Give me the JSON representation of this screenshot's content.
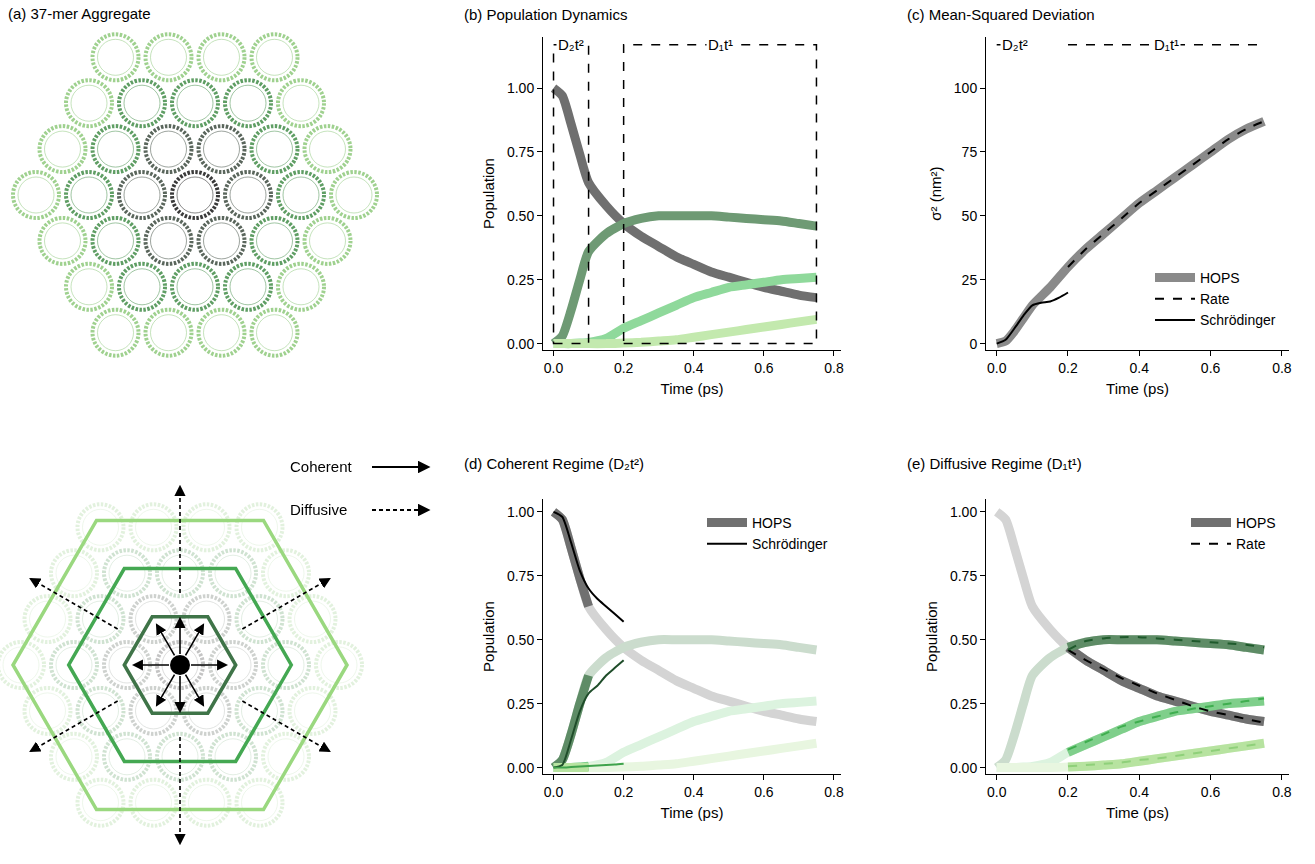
{
  "diagram": {
    "title": "(a) 37-mer Aggregate",
    "arrow_legend": [
      {
        "label": "Coherent",
        "line_style": "solid"
      },
      {
        "label": "Diffusive",
        "line_style": "dashed"
      }
    ]
  },
  "chart_data": [
    {
      "type": "line",
      "title": "(b) Population Dynamics",
      "x_label": "Time (ps)",
      "y_label": "Population",
      "xlim": [
        -0.03,
        0.82
      ],
      "xticks": [
        {
          "value": 0,
          "label": "0.0"
        },
        0.2,
        0.4,
        0.6,
        0.8
      ],
      "ylim": [
        -0.025,
        1.2
      ],
      "yticks": [
        {
          "value": 0,
          "label": "0.00"
        },
        0.25,
        {
          "value": 0.5,
          "label": "0.50"
        },
        0.75,
        {
          "value": 1,
          "label": "1.00"
        }
      ],
      "grid": false,
      "regions": [
        {
          "label": "D₂t²",
          "x": [
            0,
            0.1
          ],
          "y": [
            0,
            1.17
          ]
        },
        {
          "label": "D₁t¹",
          "x": [
            0.2,
            0.75
          ],
          "y": [
            0,
            1.17
          ]
        }
      ],
      "x": [
        0,
        0.025,
        0.05,
        0.075,
        0.1,
        0.15,
        0.2,
        0.25,
        0.3,
        0.35,
        0.4,
        0.45,
        0.5,
        0.55,
        0.6,
        0.65,
        0.7,
        0.75
      ],
      "series": [
        {
          "color": "#6f6f6f",
          "line_style": "thick",
          "values": [
            1.0,
            0.97,
            0.86,
            0.74,
            0.63,
            0.54,
            0.47,
            0.42,
            0.38,
            0.34,
            0.31,
            0.28,
            0.26,
            0.24,
            0.22,
            0.205,
            0.19,
            0.18
          ]
        },
        {
          "color": "#6e9a74",
          "line_style": "thick",
          "values": [
            0,
            0.03,
            0.13,
            0.25,
            0.36,
            0.43,
            0.47,
            0.49,
            0.5,
            0.5,
            0.5,
            0.5,
            0.495,
            0.49,
            0.485,
            0.48,
            0.47,
            0.46
          ]
        },
        {
          "color": "#8fd99b",
          "line_style": "thick",
          "values": [
            0,
            0,
            0,
            0.002,
            0.005,
            0.02,
            0.06,
            0.09,
            0.12,
            0.15,
            0.18,
            0.2,
            0.22,
            0.23,
            0.24,
            0.25,
            0.255,
            0.26
          ]
        },
        {
          "color": "#c3e9ae",
          "line_style": "thick",
          "values": [
            0,
            0,
            0,
            0,
            0,
            0,
            0.002,
            0.005,
            0.01,
            0.015,
            0.025,
            0.035,
            0.045,
            0.055,
            0.065,
            0.075,
            0.085,
            0.095
          ]
        }
      ]
    },
    {
      "type": "line",
      "title": "(c) Mean-Squared Deviation",
      "x_label": "Time (ps)",
      "y_label": "σ² (nm²)",
      "xlim": [
        -0.03,
        0.82
      ],
      "xticks": [
        {
          "value": 0,
          "label": "0.0"
        },
        0.2,
        0.4,
        0.6,
        0.8
      ],
      "ylim": [
        -2.5,
        120
      ],
      "yticks": [
        0,
        25,
        50,
        75,
        100
      ],
      "grid": false,
      "legend": "lower right",
      "regions": [
        {
          "label": "D₂t²",
          "x": [
            0,
            0.1
          ],
          "y": [
            117
          ]
        },
        {
          "label": "D₁t¹",
          "x": [
            0.2,
            0.75
          ],
          "y": [
            117
          ]
        }
      ],
      "series": [
        {
          "name": "HOPS",
          "color": "#8a8a8a",
          "line_style": "thick",
          "x": [
            0,
            0.025,
            0.05,
            0.075,
            0.1,
            0.15,
            0.2,
            0.25,
            0.3,
            0.35,
            0.4,
            0.45,
            0.5,
            0.55,
            0.6,
            0.65,
            0.7,
            0.75
          ],
          "values": [
            0,
            1,
            5,
            10,
            15,
            22,
            30,
            37,
            43,
            49,
            55,
            60,
            65,
            70,
            75,
            80,
            84,
            87
          ]
        },
        {
          "name": "Rate",
          "color": "#000000",
          "line_style": "dashed",
          "x": [
            0.2,
            0.25,
            0.3,
            0.35,
            0.4,
            0.45,
            0.5,
            0.55,
            0.6,
            0.65,
            0.7,
            0.75
          ],
          "values": [
            30,
            37,
            43,
            49,
            55,
            60,
            65,
            70,
            75,
            80,
            84,
            87
          ]
        },
        {
          "name": "Schrödinger",
          "color": "#000000",
          "line_style": "solid",
          "x": [
            0,
            0.025,
            0.05,
            0.075,
            0.1,
            0.125,
            0.15,
            0.175,
            0.2
          ],
          "values": [
            0,
            1.5,
            6,
            11,
            15,
            16,
            16.5,
            18,
            20
          ]
        }
      ]
    },
    {
      "type": "line",
      "title": "(d) Coherent Regime (D₂t²)",
      "x_label": "Time (ps)",
      "y_label": "Population",
      "xlim": [
        -0.03,
        0.82
      ],
      "xticks": [
        {
          "value": 0,
          "label": "0.0"
        },
        0.2,
        0.4,
        0.6,
        0.8
      ],
      "ylim": [
        -0.025,
        1.05
      ],
      "yticks": [
        {
          "value": 0,
          "label": "0.00"
        },
        0.25,
        {
          "value": 0.5,
          "label": "0.50"
        },
        0.75,
        {
          "value": 1,
          "label": "1.00"
        }
      ],
      "grid": false,
      "legend": "upper right",
      "x": [
        0,
        0.025,
        0.05,
        0.075,
        0.1,
        0.15,
        0.2,
        0.25,
        0.3,
        0.35,
        0.4,
        0.45,
        0.5,
        0.55,
        0.6,
        0.65,
        0.7,
        0.75
      ],
      "series": [
        {
          "color": "#d4d4d4",
          "line_style": "thick",
          "values": [
            1.0,
            0.97,
            0.86,
            0.74,
            0.63,
            0.54,
            0.47,
            0.42,
            0.38,
            0.34,
            0.31,
            0.28,
            0.26,
            0.24,
            0.22,
            0.205,
            0.19,
            0.18
          ]
        },
        {
          "color": "#cbdccd",
          "line_style": "thick",
          "values": [
            0,
            0.03,
            0.13,
            0.25,
            0.36,
            0.43,
            0.47,
            0.49,
            0.5,
            0.5,
            0.5,
            0.5,
            0.495,
            0.49,
            0.485,
            0.48,
            0.47,
            0.46
          ]
        },
        {
          "color": "#dcf3df",
          "line_style": "thick",
          "values": [
            0,
            0,
            0,
            0.002,
            0.005,
            0.02,
            0.06,
            0.09,
            0.12,
            0.15,
            0.18,
            0.2,
            0.22,
            0.23,
            0.24,
            0.25,
            0.255,
            0.26
          ]
        },
        {
          "color": "#e8f6e0",
          "line_style": "thick",
          "values": [
            0,
            0,
            0,
            0,
            0,
            0,
            0.002,
            0.005,
            0.01,
            0.015,
            0.025,
            0.035,
            0.045,
            0.055,
            0.065,
            0.075,
            0.085,
            0.095
          ]
        },
        {
          "name": "HOPS",
          "color": "#707070",
          "line_style": "thick",
          "x": [
            0,
            0.025,
            0.05,
            0.075,
            0.1
          ],
          "values": [
            1.0,
            0.97,
            0.86,
            0.74,
            0.63
          ]
        },
        {
          "color": "#5e8c66",
          "line_style": "thick",
          "x": [
            0,
            0.025,
            0.05,
            0.075,
            0.1
          ],
          "values": [
            0,
            0.03,
            0.13,
            0.25,
            0.36
          ]
        },
        {
          "color": "#7fcf8b",
          "line_style": "thick",
          "x": [
            0,
            0.025,
            0.05,
            0.075,
            0.1
          ],
          "values": [
            0,
            0,
            0,
            0.002,
            0.005
          ]
        },
        {
          "color": "#b7e3a0",
          "line_style": "thick",
          "x": [
            0,
            0.025,
            0.05,
            0.075,
            0.1
          ],
          "values": [
            0,
            0,
            0,
            0,
            0
          ]
        },
        {
          "name": "Schrödinger",
          "color": "#000000",
          "line_style": "solid",
          "x": [
            0,
            0.025,
            0.05,
            0.075,
            0.1,
            0.125,
            0.15,
            0.175,
            0.2
          ],
          "values": [
            1.0,
            0.98,
            0.88,
            0.77,
            0.7,
            0.66,
            0.63,
            0.6,
            0.57
          ]
        },
        {
          "color": "#1f4d2a",
          "line_style": "solid",
          "x": [
            0,
            0.025,
            0.05,
            0.075,
            0.1,
            0.125,
            0.15,
            0.175,
            0.2
          ],
          "values": [
            0,
            0.01,
            0.11,
            0.22,
            0.29,
            0.32,
            0.36,
            0.39,
            0.42
          ]
        },
        {
          "color": "#3fa34d",
          "line_style": "solid",
          "x": [
            0,
            0.025,
            0.05,
            0.075,
            0.1,
            0.125,
            0.15,
            0.175,
            0.2
          ],
          "values": [
            0,
            0,
            0.002,
            0.004,
            0.006,
            0.008,
            0.01,
            0.012,
            0.015
          ]
        }
      ]
    },
    {
      "type": "line",
      "title": "(e) Diffusive Regime (D₁t¹)",
      "x_label": "Time (ps)",
      "y_label": "Population",
      "xlim": [
        -0.03,
        0.82
      ],
      "xticks": [
        {
          "value": 0,
          "label": "0.0"
        },
        0.2,
        0.4,
        0.6,
        0.8
      ],
      "ylim": [
        -0.025,
        1.05
      ],
      "yticks": [
        {
          "value": 0,
          "label": "0.00"
        },
        0.25,
        {
          "value": 0.5,
          "label": "0.50"
        },
        0.75,
        {
          "value": 1,
          "label": "1.00"
        }
      ],
      "grid": false,
      "legend": "upper right",
      "x": [
        0,
        0.025,
        0.05,
        0.075,
        0.1,
        0.15,
        0.2,
        0.25,
        0.3,
        0.35,
        0.4,
        0.45,
        0.5,
        0.55,
        0.6,
        0.65,
        0.7,
        0.75
      ],
      "series": [
        {
          "color": "#d4d4d4",
          "line_style": "thick",
          "values": [
            1.0,
            0.97,
            0.86,
            0.74,
            0.63,
            0.54,
            0.47,
            0.42,
            0.38,
            0.34,
            0.31,
            0.28,
            0.26,
            0.24,
            0.22,
            0.205,
            0.19,
            0.18
          ]
        },
        {
          "color": "#cbdccd",
          "line_style": "thick",
          "values": [
            0,
            0.03,
            0.13,
            0.25,
            0.36,
            0.43,
            0.47,
            0.49,
            0.5,
            0.5,
            0.5,
            0.5,
            0.495,
            0.49,
            0.485,
            0.48,
            0.47,
            0.46
          ]
        },
        {
          "color": "#dcf3df",
          "line_style": "thick",
          "values": [
            0,
            0,
            0,
            0.002,
            0.005,
            0.02,
            0.06,
            0.09,
            0.12,
            0.15,
            0.18,
            0.2,
            0.22,
            0.23,
            0.24,
            0.25,
            0.255,
            0.26
          ]
        },
        {
          "color": "#e8f6e0",
          "line_style": "thick",
          "values": [
            0,
            0,
            0,
            0,
            0,
            0,
            0.002,
            0.005,
            0.01,
            0.015,
            0.025,
            0.035,
            0.045,
            0.055,
            0.065,
            0.075,
            0.085,
            0.095
          ]
        },
        {
          "name": "HOPS",
          "color": "#707070",
          "line_style": "thick",
          "x": [
            0.2,
            0.25,
            0.3,
            0.35,
            0.4,
            0.45,
            0.5,
            0.55,
            0.6,
            0.65,
            0.7,
            0.75
          ],
          "values": [
            0.47,
            0.42,
            0.38,
            0.34,
            0.31,
            0.28,
            0.26,
            0.24,
            0.22,
            0.205,
            0.19,
            0.18
          ]
        },
        {
          "color": "#5e8c66",
          "line_style": "thick",
          "x": [
            0.2,
            0.25,
            0.3,
            0.35,
            0.4,
            0.45,
            0.5,
            0.55,
            0.6,
            0.65,
            0.7,
            0.75
          ],
          "values": [
            0.47,
            0.49,
            0.5,
            0.5,
            0.5,
            0.5,
            0.495,
            0.49,
            0.485,
            0.48,
            0.47,
            0.46
          ]
        },
        {
          "color": "#7fcf8b",
          "line_style": "thick",
          "x": [
            0.2,
            0.25,
            0.3,
            0.35,
            0.4,
            0.45,
            0.5,
            0.55,
            0.6,
            0.65,
            0.7,
            0.75
          ],
          "values": [
            0.06,
            0.09,
            0.12,
            0.15,
            0.18,
            0.2,
            0.22,
            0.23,
            0.24,
            0.25,
            0.255,
            0.26
          ]
        },
        {
          "color": "#b7e3a0",
          "line_style": "thick",
          "x": [
            0.2,
            0.25,
            0.3,
            0.35,
            0.4,
            0.45,
            0.5,
            0.55,
            0.6,
            0.65,
            0.7,
            0.75
          ],
          "values": [
            0.002,
            0.005,
            0.01,
            0.015,
            0.025,
            0.035,
            0.045,
            0.055,
            0.065,
            0.075,
            0.085,
            0.095
          ]
        },
        {
          "name": "Rate",
          "color": "#000000",
          "line_style": "dashed",
          "x": [
            0.2,
            0.25,
            0.3,
            0.35,
            0.4,
            0.45,
            0.5,
            0.55,
            0.6,
            0.65,
            0.7,
            0.75
          ],
          "values": [
            0.46,
            0.42,
            0.385,
            0.35,
            0.32,
            0.29,
            0.265,
            0.24,
            0.22,
            0.205,
            0.19,
            0.175
          ]
        },
        {
          "color": "#1f5a2c",
          "line_style": "dashed",
          "x": [
            0.2,
            0.25,
            0.3,
            0.35,
            0.4,
            0.45,
            0.5,
            0.55,
            0.6,
            0.65,
            0.7,
            0.75
          ],
          "values": [
            0.46,
            0.495,
            0.505,
            0.51,
            0.51,
            0.505,
            0.5,
            0.495,
            0.49,
            0.485,
            0.48,
            0.47
          ]
        },
        {
          "color": "#3fae4f",
          "line_style": "dashed",
          "x": [
            0.2,
            0.25,
            0.3,
            0.35,
            0.4,
            0.45,
            0.5,
            0.55,
            0.6,
            0.65,
            0.7,
            0.75
          ],
          "values": [
            0.07,
            0.1,
            0.13,
            0.16,
            0.18,
            0.2,
            0.215,
            0.23,
            0.24,
            0.25,
            0.26,
            0.27
          ]
        },
        {
          "color": "#8fd07a",
          "line_style": "dashed",
          "x": [
            0.2,
            0.25,
            0.3,
            0.35,
            0.4,
            0.45,
            0.5,
            0.55,
            0.6,
            0.65,
            0.7,
            0.75
          ],
          "values": [
            0.005,
            0.01,
            0.015,
            0.02,
            0.03,
            0.035,
            0.045,
            0.055,
            0.065,
            0.075,
            0.085,
            0.095
          ]
        }
      ]
    }
  ]
}
